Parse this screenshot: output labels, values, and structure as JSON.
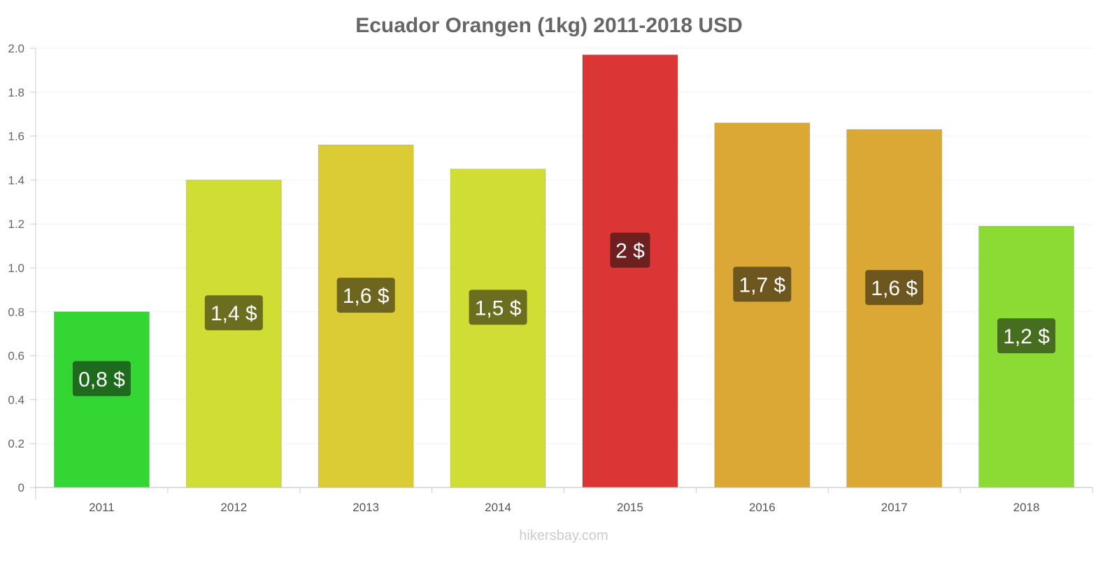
{
  "chart_data": {
    "type": "bar",
    "title": "Ecuador Orangen (1kg) 2011-2018 USD",
    "xlabel": "",
    "ylabel": "",
    "ylim": [
      0,
      2.0
    ],
    "yticks": [
      "0",
      "0.2",
      "0.4",
      "0.6",
      "0.8",
      "1.0",
      "1.2",
      "1.4",
      "1.6",
      "1.8",
      "2.0"
    ],
    "grid": true,
    "categories": [
      "2011",
      "2012",
      "2013",
      "2014",
      "2015",
      "2016",
      "2017",
      "2018"
    ],
    "values": [
      0.8,
      1.4,
      1.56,
      1.45,
      1.97,
      1.66,
      1.63,
      1.19
    ],
    "data_labels": [
      "0,8 $",
      "1,4 $",
      "1,6 $",
      "1,5 $",
      "2 $",
      "1,7 $",
      "1,6 $",
      "1,2 $"
    ],
    "bar_colors": [
      "#33d633",
      "#cfdd35",
      "#dbcb35",
      "#cfdd35",
      "#db3535",
      "#dca835",
      "#dca835",
      "#8cdb35"
    ],
    "label_colors": [
      "#1e6b1e",
      "#6b6e1f",
      "#6e651f",
      "#6b6e1f",
      "#6e1f1f",
      "#6e561f",
      "#6e561f",
      "#476e1f"
    ]
  },
  "watermark": "hikersbay.com"
}
